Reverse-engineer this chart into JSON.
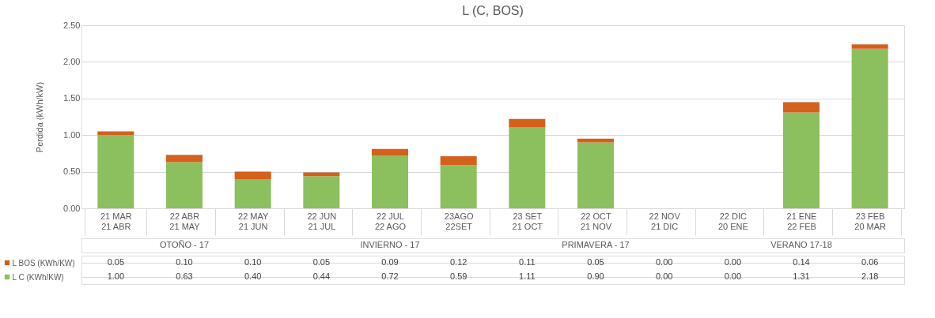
{
  "chart_data": {
    "type": "bar",
    "title": "L (C, BOS)",
    "ylabel": "Perdida (kWh/kW)",
    "categories": [
      "21 MAR\n21 ABR",
      "22 ABR\n21 MAY",
      "22 MAY\n21 JUN",
      "22 JUN\n21 JUL",
      "22 JUL\n22 AGO",
      "23AGO\n22SET",
      "23 SET\n21 OCT",
      "22 OCT\n21 NOV",
      "22 NOV\n21 DIC",
      "22 DIC\n20 ENE",
      "21 ENE\n22 FEB",
      "23 FEB\n20 MAR"
    ],
    "series": [
      {
        "name": "L C (KWh/KW)",
        "color": "#8cbf5e",
        "values": [
          1.0,
          0.63,
          0.4,
          0.44,
          0.72,
          0.59,
          1.11,
          0.9,
          0.0,
          0.0,
          1.31,
          2.18
        ],
        "value_labels": [
          "1.00",
          "0.63",
          "0.40",
          "0.44",
          "0.72",
          "0.59",
          "1.11",
          "0.90",
          "0.00",
          "0.00",
          "1.31",
          "2.18"
        ]
      },
      {
        "name": "L BOS (KWh/KW)",
        "color": "#d4601c",
        "values": [
          0.05,
          0.1,
          0.1,
          0.05,
          0.09,
          0.12,
          0.11,
          0.05,
          0.0,
          0.0,
          0.14,
          0.06
        ],
        "value_labels": [
          "0.05",
          "0.10",
          "0.10",
          "0.05",
          "0.09",
          "0.12",
          "0.11",
          "0.05",
          "0.00",
          "0.00",
          "0.14",
          "0.06"
        ]
      }
    ],
    "stacked": true,
    "ylim": [
      0,
      2.5
    ],
    "yticks": [
      {
        "value": 0,
        "label": "0.00"
      },
      {
        "value": 0.5,
        "label": "0.50"
      },
      {
        "value": 1,
        "label": "1.00"
      },
      {
        "value": 1.5,
        "label": "1.50"
      },
      {
        "value": 2,
        "label": "2.00"
      },
      {
        "value": 2.5,
        "label": "2.50"
      }
    ],
    "grid": "y",
    "legend": "bottom",
    "annotations": [
      "OTOÑO - 17",
      "INVIERNO - 17",
      "PRIMAVERA - 17",
      "VERANO 17-18"
    ]
  }
}
